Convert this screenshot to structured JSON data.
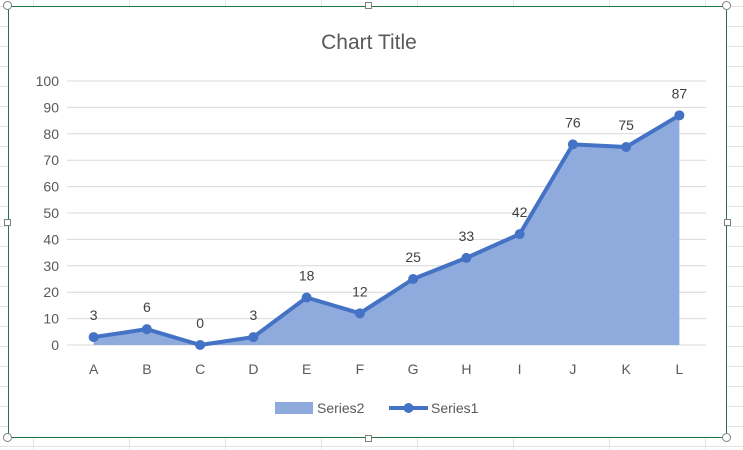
{
  "chart_data": {
    "type": "area",
    "title": "Chart Title",
    "categories": [
      "A",
      "B",
      "C",
      "D",
      "E",
      "F",
      "G",
      "H",
      "I",
      "J",
      "K",
      "L"
    ],
    "ylim": [
      0,
      100
    ],
    "yticks": [
      0,
      10,
      20,
      30,
      40,
      50,
      60,
      70,
      80,
      90,
      100
    ],
    "grid": true,
    "legend_position": "bottom",
    "series": [
      {
        "name": "Series2",
        "type": "area",
        "color": "#8faadc",
        "values": [
          3,
          6,
          0,
          3,
          18,
          12,
          25,
          33,
          42,
          76,
          75,
          87
        ]
      },
      {
        "name": "Series1",
        "type": "line",
        "color": "#4472c4",
        "values": [
          3,
          6,
          0,
          3,
          18,
          12,
          25,
          33,
          42,
          76,
          75,
          87
        ],
        "data_labels": true
      }
    ]
  }
}
